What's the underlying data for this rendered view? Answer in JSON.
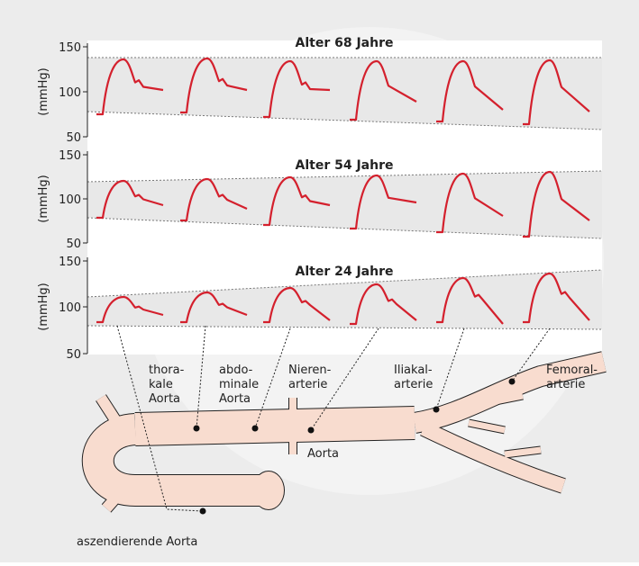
{
  "panels": [
    {
      "title": "Alter 68 Jahre",
      "y_label": "(mmHg)",
      "yticks": [
        "150",
        "100",
        "50"
      ]
    },
    {
      "title": "Alter 54 Jahre",
      "y_label": "(mmHg)",
      "yticks": [
        "150",
        "100",
        "50"
      ]
    },
    {
      "title": "Alter 24 Jahre",
      "y_label": "(mmHg)",
      "yticks": [
        "150",
        "100",
        "50"
      ]
    }
  ],
  "labels": [
    {
      "lines": [
        "thora-",
        "kale",
        "Aorta"
      ]
    },
    {
      "lines": [
        "abdo-",
        "minale",
        "Aorta"
      ]
    },
    {
      "lines": [
        "Nieren-",
        "arterie"
      ]
    },
    {
      "lines": [
        "Iliakal-",
        "arterie"
      ]
    },
    {
      "lines": [
        "Femoral-",
        "arterie"
      ]
    },
    {
      "lines": [
        "Aorta"
      ]
    },
    {
      "lines": [
        "aszendierende Aorta"
      ]
    }
  ]
}
